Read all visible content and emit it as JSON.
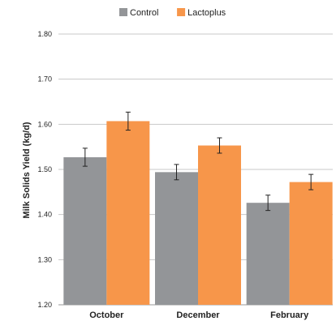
{
  "chart_data": {
    "type": "bar",
    "categories": [
      "October",
      "December",
      "February"
    ],
    "series": [
      {
        "name": "Control",
        "color": "#939598",
        "values": [
          1.527,
          1.494,
          1.426
        ],
        "error": [
          0.02,
          0.017,
          0.017
        ]
      },
      {
        "name": "Lactoplus",
        "color": "#f7964a",
        "values": [
          1.607,
          1.553,
          1.472
        ],
        "error": [
          0.02,
          0.017,
          0.017
        ]
      }
    ],
    "title": "",
    "xlabel": "",
    "ylabel": "Milk Solids Yield (kg/d)",
    "ylim": [
      1.2,
      1.8
    ],
    "yticks": [
      "1.20",
      "1.30",
      "1.40",
      "1.50",
      "1.60",
      "1.70",
      "1.80"
    ],
    "grid": true,
    "legend_position": "top-center"
  }
}
